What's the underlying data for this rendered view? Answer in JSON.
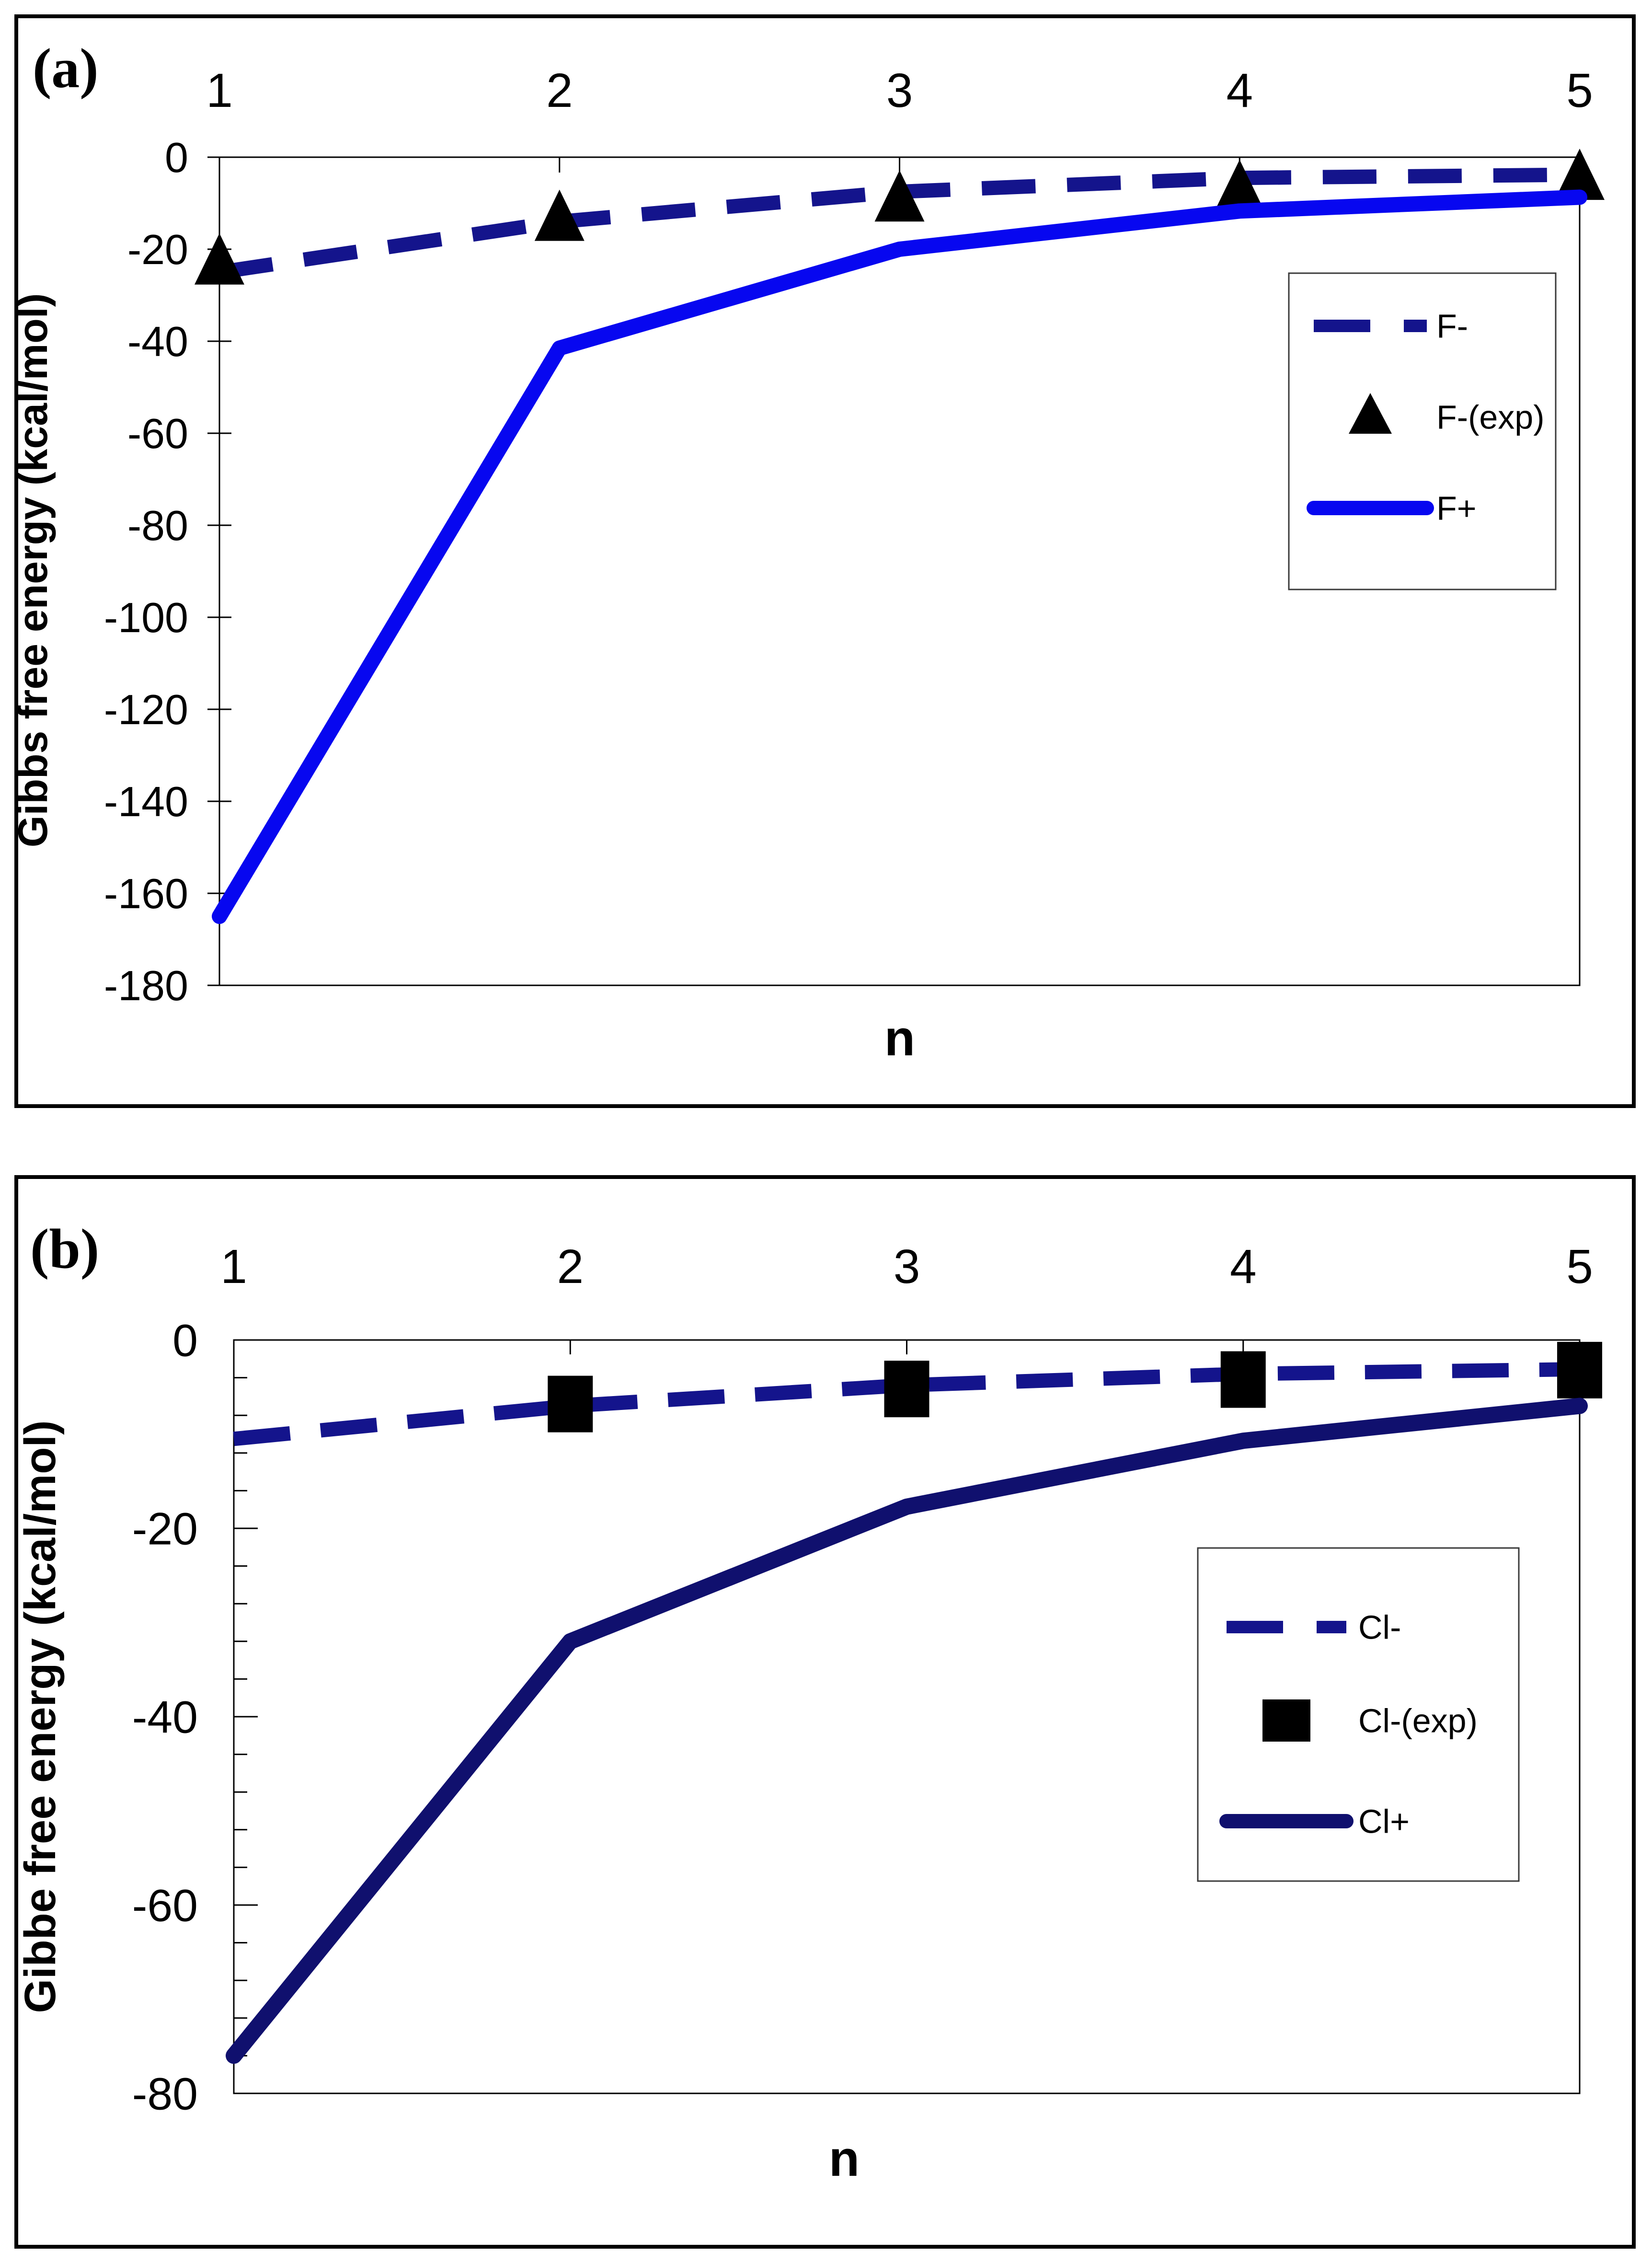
{
  "figure": {
    "background": "#ffffff",
    "panel_border_color": "#000000",
    "axis_color": "#000000"
  },
  "chart_data": [
    {
      "type": "line",
      "panel_label": "(a)",
      "title": "",
      "xlabel": "n",
      "ylabel": "Gibbs free energy (kcal/mol)",
      "x": [
        1,
        2,
        3,
        4,
        5
      ],
      "xticks": [
        "1",
        "2",
        "3",
        "4",
        "5"
      ],
      "yticks": [
        "0",
        "-20",
        "-40",
        "-60",
        "-80",
        "-100",
        "-120",
        "-140",
        "-160",
        "-180"
      ],
      "ylim": [
        0,
        -180
      ],
      "grid": false,
      "legend_position": "middle-right",
      "series": [
        {
          "name": "F-",
          "line": "dashed",
          "marker": "none",
          "color": "#14148C",
          "x": [
            1,
            2,
            3,
            4,
            5
          ],
          "values": [
            -25,
            -14,
            -7.5,
            -4.5,
            -3.8
          ]
        },
        {
          "name": "F-(exp)",
          "line": "none",
          "marker": "triangle",
          "color": "#000000",
          "x": [
            1,
            2,
            3,
            4,
            5
          ],
          "values": [
            -23,
            -13.5,
            -9.3,
            -7,
            -4.6
          ]
        },
        {
          "name": "F+",
          "line": "solid",
          "marker": "none",
          "color": "#0707F0",
          "x": [
            1,
            2,
            3,
            4,
            5
          ],
          "values": [
            -165,
            -41.5,
            -20,
            -11.7,
            -8.7
          ]
        }
      ]
    },
    {
      "type": "line",
      "panel_label": "(b)",
      "title": "",
      "xlabel": "n",
      "ylabel": "Gibbe free energy (kcal/mol)",
      "x": [
        1,
        2,
        3,
        4,
        5
      ],
      "xticks": [
        "1",
        "2",
        "3",
        "4",
        "5"
      ],
      "yticks": [
        "0",
        "-20",
        "-40",
        "-60",
        "-80"
      ],
      "minor_tick_unit": 4,
      "ylim": [
        0,
        -80
      ],
      "grid": false,
      "legend_position": "middle-right",
      "series": [
        {
          "name": "Cl-",
          "line": "dashed",
          "marker": "none",
          "color": "#14148C",
          "x": [
            1,
            2,
            3,
            4,
            5
          ],
          "values": [
            -10.5,
            -7,
            -4.8,
            -3.6,
            -3.1
          ]
        },
        {
          "name": "Cl-(exp)",
          "line": "none",
          "marker": "square",
          "color": "#000000",
          "x": [
            2,
            3,
            4,
            5
          ],
          "values": [
            -6.8,
            -5.2,
            -4.2,
            -3.2
          ]
        },
        {
          "name": "Cl+",
          "line": "solid",
          "marker": "none",
          "color": "#10106E",
          "x": [
            1,
            2,
            3,
            4,
            5
          ],
          "values": [
            -76,
            -32,
            -17.7,
            -10.7,
            -7
          ]
        }
      ]
    }
  ]
}
